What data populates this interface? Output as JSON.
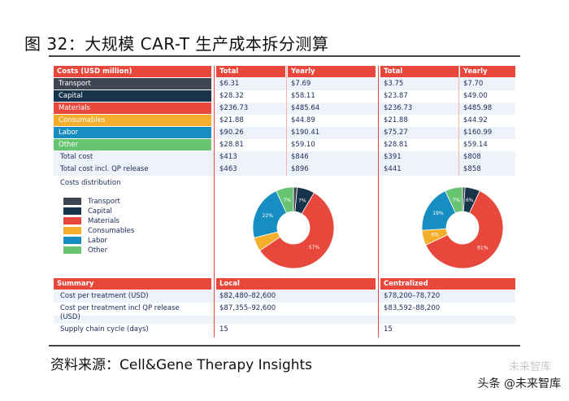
{
  "title": "图 32：大规模 CAR-T 生产成本拆分测算",
  "header": {
    "costs_label": "Costs (USD million)",
    "total": "Total",
    "yearly": "Yearly"
  },
  "rows": [
    {
      "label": "Transport",
      "local_total": "$6.31",
      "local_yearly": "$7.69",
      "central_total": "$3.75",
      "central_yearly": "$7.70",
      "color": "#3f4553"
    },
    {
      "label": "Capital",
      "local_total": "$28.32",
      "local_yearly": "$58.11",
      "central_total": "$23.87",
      "central_yearly": "$49.00",
      "color": "#17344a"
    },
    {
      "label": "Materials",
      "local_total": "$236.73",
      "local_yearly": "$485.64",
      "central_total": "$236.73",
      "central_yearly": "$485.98",
      "color": "#e8473c"
    },
    {
      "label": "Consumables",
      "local_total": "$21.88",
      "local_yearly": "$44.89",
      "central_total": "$21.88",
      "central_yearly": "$44.92",
      "color": "#f3ae2c"
    },
    {
      "label": "Labor",
      "local_total": "$90.26",
      "local_yearly": "$190.41",
      "central_total": "$75.27",
      "central_yearly": "$160.99",
      "color": "#178ec2"
    },
    {
      "label": "Other",
      "local_total": "$28.81",
      "local_yearly": "$59.10",
      "central_total": "$28.81",
      "central_yearly": "$59.14",
      "color": "#67c470"
    },
    {
      "label": "Total cost",
      "local_total": "$413",
      "local_yearly": "$846",
      "central_total": "$391",
      "central_yearly": "$808"
    },
    {
      "label": "Total cost incl. QP release",
      "local_total": "$463",
      "local_yearly": "$896",
      "central_total": "$441",
      "central_yearly": "$858"
    }
  ],
  "distribution_label": "Costs distribution",
  "legend": [
    {
      "label": "Transport",
      "color": "#3f4553"
    },
    {
      "label": "Capital",
      "color": "#17344a"
    },
    {
      "label": "Materials",
      "color": "#e8473c"
    },
    {
      "label": "Consumables",
      "color": "#f3ae2c"
    },
    {
      "label": "Labor",
      "color": "#178ec2"
    },
    {
      "label": "Other",
      "color": "#67c470"
    }
  ],
  "donuts": [
    {
      "name": "local",
      "slices": [
        {
          "label": "Transport",
          "value": 1.5,
          "text": ""
        },
        {
          "label": "Capital",
          "value": 7,
          "text": "7%"
        },
        {
          "label": "Materials",
          "value": 57,
          "text": "57%"
        },
        {
          "label": "Consumables",
          "value": 5.5,
          "text": ""
        },
        {
          "label": "Labor",
          "value": 22,
          "text": "22%"
        },
        {
          "label": "Other",
          "value": 7,
          "text": "7%"
        }
      ]
    },
    {
      "name": "centralized",
      "slices": [
        {
          "label": "Transport",
          "value": 1,
          "text": ""
        },
        {
          "label": "Capital",
          "value": 6,
          "text": "6%"
        },
        {
          "label": "Materials",
          "value": 61,
          "text": "61%"
        },
        {
          "label": "Consumables",
          "value": 6,
          "text": "6%"
        },
        {
          "label": "Labor",
          "value": 19,
          "text": "19%"
        },
        {
          "label": "Other",
          "value": 7,
          "text": "7%"
        }
      ]
    }
  ],
  "summary": {
    "label": "Summary",
    "local": "Local",
    "centralized": "Centralized",
    "rows": [
      {
        "label": "Cost per treatment (USD)",
        "local": "$82,480–82,600",
        "central": "$78,200–78,720"
      },
      {
        "label_line1": "Cost per treatment incl QP release",
        "label_line2": "(USD)",
        "local": "$87,355–92,600",
        "central": "$83,592–88,200"
      },
      {
        "label": "Supply chain cycle (days)",
        "local": "15",
        "central": "15"
      }
    ]
  },
  "source": "资料来源：Cell&Gene Therapy Insights",
  "watermark": "头条 @未来智库",
  "watermark_faint": "未来智库"
}
